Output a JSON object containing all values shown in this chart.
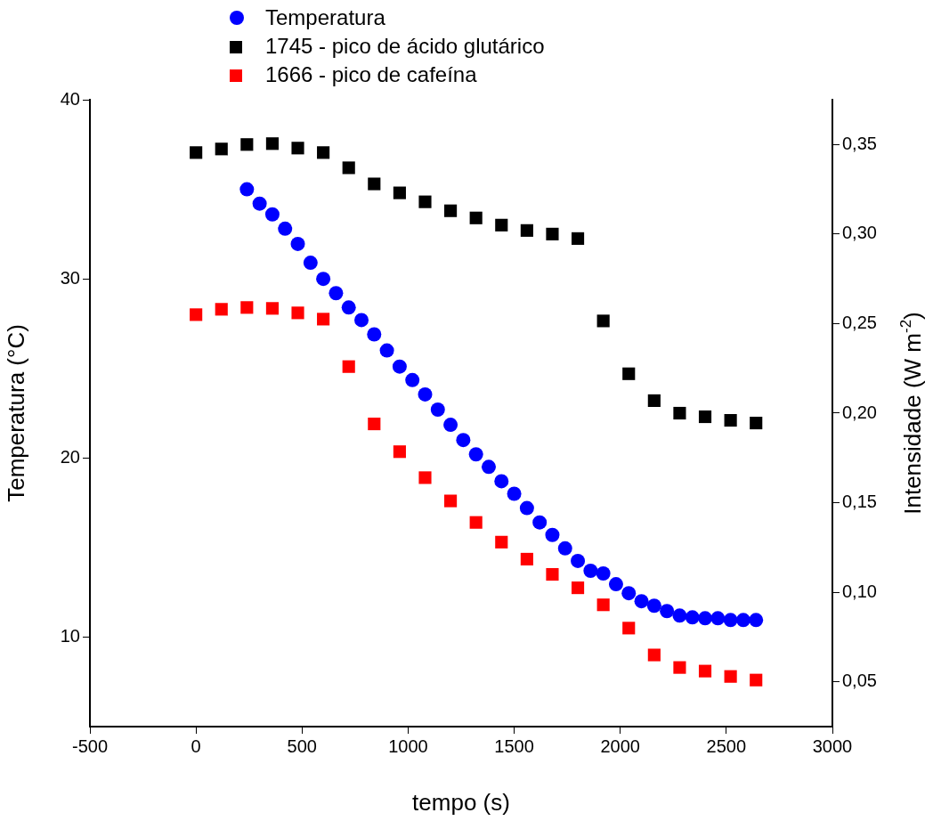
{
  "chart_data": {
    "type": "scatter",
    "xlabel": "tempo (s)",
    "ylabel": "Temperatura (°C)",
    "y2label": "Intensidade (W m$^{-2}$)",
    "xlim": [
      -500,
      3000
    ],
    "xticks": [
      -500,
      0,
      500,
      1000,
      1500,
      2000,
      2500,
      3000
    ],
    "ylim": [
      5,
      40
    ],
    "yticks": [
      10,
      20,
      30,
      40
    ],
    "y2lim": [
      0.025,
      0.375
    ],
    "y2ticks": [
      {
        "value": 0.05,
        "label": "0,05"
      },
      {
        "value": 0.1,
        "label": "0,10"
      },
      {
        "value": 0.15,
        "label": "0,15"
      },
      {
        "value": 0.2,
        "label": "0,20"
      },
      {
        "value": 0.25,
        "label": "0,25"
      },
      {
        "value": 0.3,
        "label": "0,30"
      },
      {
        "value": 0.35,
        "label": "0,35"
      }
    ],
    "grid": false,
    "legend": "top left",
    "series": [
      {
        "name": "Temperatura",
        "color": "#0000ff",
        "marker": "circle",
        "x": [
          240,
          300,
          360,
          420,
          480,
          540,
          600,
          660,
          720,
          780,
          840,
          900,
          960,
          1020,
          1080,
          1140,
          1200,
          1260,
          1320,
          1380,
          1440,
          1500,
          1560,
          1620,
          1680,
          1740,
          1800,
          1860,
          1920,
          1980,
          2040,
          2100,
          2160,
          2220,
          2280,
          2340,
          2400,
          2460,
          2520,
          2580,
          2640
        ],
        "values": [
          35.0,
          34.2,
          33.6,
          32.8,
          31.95,
          30.9,
          30.0,
          29.2,
          28.4,
          27.7,
          26.9,
          26.0,
          25.1,
          24.35,
          23.55,
          22.7,
          21.85,
          21.0,
          20.2,
          19.5,
          18.7,
          18.0,
          17.2,
          16.4,
          15.7,
          14.95,
          14.25,
          13.7,
          13.55,
          12.95,
          12.45,
          12.0,
          11.75,
          11.45,
          11.2,
          11.1,
          11.05,
          11.05,
          10.95,
          10.95,
          10.95
        ]
      },
      {
        "name": "1745 - pico de ácido glutárico",
        "color": "#000000",
        "marker": "square",
        "axis": "y2",
        "x": [
          0,
          120,
          240,
          360,
          480,
          600,
          720,
          840,
          960,
          1080,
          1200,
          1320,
          1440,
          1560,
          1680,
          1800,
          1920,
          2040,
          2160,
          2280,
          2400,
          2520,
          2640
        ],
        "values": [
          0.3455,
          0.3475,
          0.35,
          0.3505,
          0.348,
          0.3455,
          0.337,
          0.328,
          0.323,
          0.318,
          0.313,
          0.309,
          0.305,
          0.302,
          0.3,
          0.2975,
          0.2515,
          0.222,
          0.207,
          0.2,
          0.198,
          0.196,
          0.1945
        ]
      },
      {
        "name": "1666 - pico de cafeína",
        "color": "#ff0000",
        "marker": "square",
        "axis": "y2",
        "x": [
          0,
          120,
          240,
          360,
          480,
          600,
          720,
          840,
          960,
          1080,
          1200,
          1320,
          1440,
          1560,
          1680,
          1800,
          1920,
          2040,
          2160,
          2280,
          2400,
          2520,
          2640
        ],
        "values": [
          0.255,
          0.258,
          0.259,
          0.2585,
          0.256,
          0.2525,
          0.226,
          0.194,
          0.1785,
          0.164,
          0.151,
          0.139,
          0.128,
          0.1185,
          0.11,
          0.1025,
          0.093,
          0.08,
          0.065,
          0.058,
          0.056,
          0.053,
          0.051
        ]
      }
    ]
  }
}
